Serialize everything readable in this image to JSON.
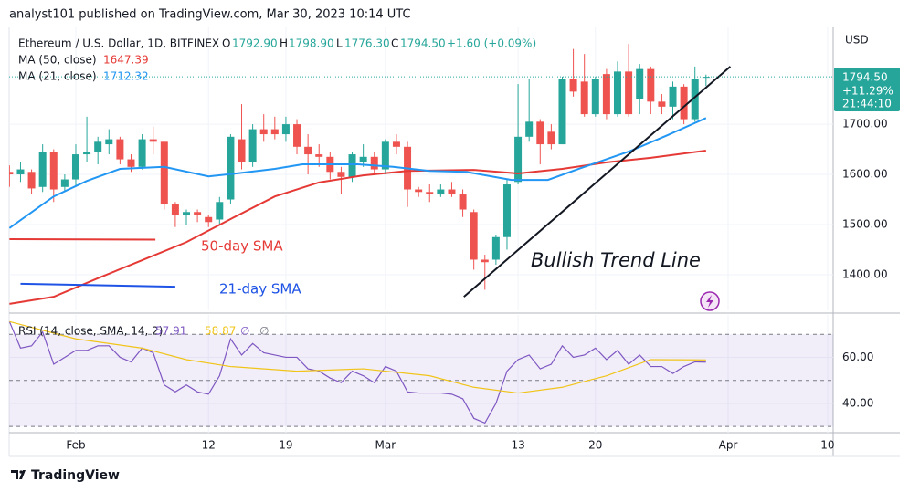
{
  "header": {
    "published": "analyst101 published on TradingView.com, Mar 30, 2023 10:14 UTC"
  },
  "footer": {
    "brand": "TradingView"
  },
  "chart_data": [
    {
      "type": "candlestick",
      "title": "Ethereum / U.S. Dollar, 1D, BITFINEX",
      "ohlc_letters": [
        "O",
        "H",
        "L",
        "C"
      ],
      "legend_values": {
        "open": "1792.90",
        "high": "1798.90",
        "low": "1776.30",
        "close": "1794.50"
      },
      "change": "+1.60 (+0.09%)",
      "y_axis_label": "USD",
      "price_label": {
        "change_pct": "+11.29%",
        "countdown": "21:44:10"
      },
      "colors": {
        "up": "#26a69a",
        "down": "#ef5350"
      },
      "x": [
        -6,
        -5,
        -4,
        -3,
        -2,
        -1,
        0,
        1,
        2,
        3,
        4,
        5,
        6,
        7,
        8,
        9,
        10,
        11,
        12,
        13,
        14,
        15,
        16,
        17,
        18,
        19,
        20,
        21,
        22,
        23,
        24,
        25,
        26,
        27,
        28,
        29,
        30,
        31,
        32,
        33,
        34,
        35,
        36,
        37,
        38,
        39,
        40,
        41,
        42,
        43,
        44,
        45,
        46,
        47,
        48,
        49,
        50,
        51,
        52,
        53,
        54,
        55,
        56,
        57
      ],
      "open": [
        1605,
        1600,
        1605,
        1575,
        1645,
        1575,
        1590,
        1640,
        1645,
        1660,
        1670,
        1630,
        1615,
        1670,
        1665,
        1540,
        1520,
        1525,
        1515,
        1510,
        1550,
        1670,
        1625,
        1690,
        1690,
        1680,
        1700,
        1655,
        1640,
        1635,
        1605,
        1595,
        1625,
        1635,
        1610,
        1665,
        1655,
        1570,
        1565,
        1560,
        1570,
        1560,
        1525,
        1430,
        1430,
        1475,
        1585,
        1675,
        1705,
        1685,
        1660,
        1790,
        1785,
        1720,
        1800,
        1720,
        1805,
        1750,
        1810,
        1745,
        1735,
        1775,
        1710,
        1792.9
      ],
      "high": [
        1618,
        1625,
        1610,
        1660,
        1650,
        1600,
        1660,
        1715,
        1675,
        1690,
        1675,
        1640,
        1680,
        1695,
        1665,
        1545,
        1530,
        1530,
        1520,
        1555,
        1680,
        1740,
        1700,
        1720,
        1715,
        1715,
        1710,
        1680,
        1660,
        1645,
        1615,
        1645,
        1660,
        1645,
        1670,
        1680,
        1665,
        1575,
        1580,
        1580,
        1585,
        1570,
        1530,
        1440,
        1480,
        1590,
        1780,
        1790,
        1710,
        1700,
        1795,
        1850,
        1840,
        1795,
        1810,
        1825,
        1860,
        1820,
        1815,
        1760,
        1785,
        1780,
        1815,
        1798.9
      ],
      "low": [
        1575,
        1585,
        1560,
        1565,
        1545,
        1565,
        1575,
        1625,
        1620,
        1640,
        1620,
        1605,
        1610,
        1640,
        1530,
        1495,
        1500,
        1505,
        1495,
        1500,
        1540,
        1610,
        1615,
        1665,
        1670,
        1665,
        1640,
        1600,
        1615,
        1590,
        1560,
        1585,
        1615,
        1600,
        1600,
        1640,
        1535,
        1555,
        1545,
        1555,
        1555,
        1515,
        1410,
        1370,
        1420,
        1450,
        1580,
        1665,
        1620,
        1650,
        1660,
        1755,
        1715,
        1715,
        1710,
        1715,
        1715,
        1720,
        1720,
        1720,
        1710,
        1700,
        1705,
        1776.3
      ],
      "close": [
        1600,
        1610,
        1572,
        1645,
        1570,
        1590,
        1640,
        1645,
        1665,
        1670,
        1630,
        1615,
        1670,
        1665,
        1540,
        1520,
        1525,
        1520,
        1505,
        1545,
        1675,
        1625,
        1690,
        1680,
        1680,
        1700,
        1655,
        1640,
        1635,
        1605,
        1595,
        1640,
        1635,
        1610,
        1665,
        1655,
        1570,
        1565,
        1560,
        1570,
        1560,
        1530,
        1430,
        1425,
        1475,
        1580,
        1675,
        1705,
        1660,
        1660,
        1790,
        1765,
        1720,
        1790,
        1720,
        1805,
        1720,
        1810,
        1745,
        1735,
        1775,
        1710,
        1790,
        1794.5
      ],
      "series": [
        {
          "name": "MA (50, close)",
          "color": "#e53935",
          "x": [
            -6,
            -2,
            2,
            6,
            10,
            14,
            18,
            22,
            26,
            30,
            36,
            40,
            44,
            48,
            52,
            57
          ],
          "values": [
            1342,
            1356,
            1393,
            1429,
            1465,
            1511,
            1556,
            1584,
            1598,
            1607,
            1609,
            1602,
            1611,
            1624,
            1633,
            1647.39
          ]
        },
        {
          "name": "MA (21, close)",
          "color": "#2196f3",
          "x": [
            -6,
            -2,
            1,
            4,
            8,
            12,
            14.5,
            18,
            20.5,
            25.5,
            28.7,
            32,
            35.3,
            39.4,
            42.7,
            46,
            50.2,
            53.5,
            57
          ],
          "values": [
            1493,
            1556,
            1587,
            1611,
            1615,
            1596,
            1602,
            1611,
            1620,
            1620,
            1615,
            1607,
            1605,
            1589,
            1589,
            1615,
            1647,
            1678,
            1712.32
          ]
        }
      ],
      "drawings": [
        {
          "color": "#e53935",
          "x": [
            -6,
            7.2
          ],
          "y": [
            1471,
            1470
          ]
        },
        {
          "color": "#1e53e5",
          "x": [
            -5,
            9
          ],
          "y": [
            1382,
            1376
          ]
        },
        {
          "color": "#131722",
          "x": [
            35.1,
            59.2
          ],
          "y": [
            1356,
            1815
          ]
        }
      ],
      "annotations": [
        {
          "text": "50-day SMA",
          "color": "#e53935"
        },
        {
          "text": "21-day SMA",
          "color": "#1e53e5"
        },
        {
          "text": "Bullish Trend Line",
          "color": "#131722"
        }
      ],
      "xlim": [
        -6.03,
        68.5
      ],
      "xticks": [
        {
          "value": 0,
          "label": "Feb"
        },
        12,
        19,
        {
          "value": 28,
          "label": "Mar"
        },
        {
          "value": 40,
          "label": "13"
        },
        {
          "value": 47,
          "label": "20"
        },
        {
          "value": 59,
          "label": "Apr"
        },
        {
          "value": 68,
          "label": "10"
        }
      ],
      "ylim": [
        1329,
        1893
      ],
      "yticks": [
        {
          "value": 1400,
          "label": "1400.00"
        },
        {
          "value": 1500,
          "label": "1500.00"
        },
        {
          "value": 1600,
          "label": "1600.00"
        },
        {
          "value": 1700,
          "label": "1700.00"
        }
      ],
      "grid": true
    },
    {
      "type": "line",
      "title": "RSI (14, close, SMA, 14, 2)",
      "extra_labels": [
        "∅",
        "∅"
      ],
      "x": [
        -6,
        -5,
        -4,
        -3,
        -2,
        -1,
        0,
        1,
        2,
        3,
        4,
        5,
        6,
        7,
        8,
        9,
        10,
        11,
        12,
        13,
        14,
        15,
        16,
        17,
        18,
        19,
        20,
        21,
        22,
        23,
        24,
        25,
        26,
        27,
        28,
        29,
        30,
        31,
        32,
        33,
        34,
        35,
        36,
        37,
        38,
        39,
        40,
        41,
        42,
        43,
        44,
        45,
        46,
        47,
        48,
        49,
        50,
        51,
        52,
        53,
        54,
        55,
        56,
        57
      ],
      "series": [
        {
          "color": "#7e57c2",
          "values": [
            75.5,
            64,
            65,
            71,
            57,
            60,
            63,
            63,
            65,
            65,
            60,
            58,
            64,
            62,
            48,
            45,
            48,
            45,
            44,
            52,
            68,
            61,
            66,
            62,
            61,
            60,
            60,
            55,
            54,
            51,
            49,
            54,
            52,
            49,
            56,
            54,
            45,
            44.5,
            44.5,
            44.5,
            44,
            42,
            33.5,
            31.5,
            40,
            54,
            59,
            61,
            55,
            57,
            65,
            60,
            61,
            64,
            59,
            63,
            57,
            61,
            56,
            56,
            53,
            56,
            58,
            57.91
          ]
        },
        {
          "color": "#f0c419",
          "x": [
            -6,
            0,
            6,
            10,
            14,
            20,
            26,
            32,
            36,
            40,
            44,
            48,
            52,
            57
          ],
          "values": [
            75.5,
            68,
            64,
            59,
            56,
            54,
            55,
            52,
            47,
            44.5,
            47,
            52,
            59,
            58.87
          ]
        }
      ],
      "bands": [
        30,
        50,
        70
      ],
      "xlim": [
        -6.03,
        68.5
      ],
      "ylim": [
        27.3,
        78.4
      ],
      "yticks": [
        {
          "value": 40,
          "label": "40.00"
        },
        {
          "value": 60,
          "label": "60.00"
        }
      ],
      "grid": true
    }
  ]
}
